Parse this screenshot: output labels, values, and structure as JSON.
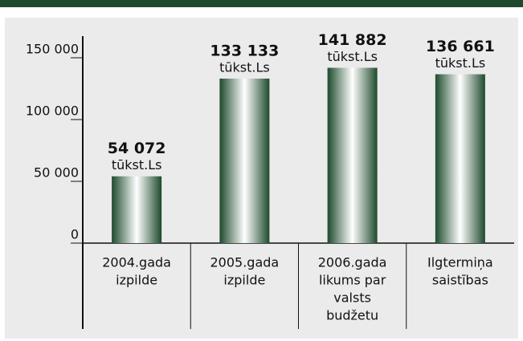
{
  "chart_data": {
    "type": "bar",
    "categories": [
      [
        "2004.gada",
        "izpilde"
      ],
      [
        "2005.gada",
        "izpilde"
      ],
      [
        "2006.gada",
        "likums par",
        "valsts",
        "budžetu"
      ],
      [
        "Ilgtermiņa",
        "saistības"
      ]
    ],
    "values": [
      54072,
      133133,
      141882,
      136661
    ],
    "value_labels": [
      "54 072",
      "133 133",
      "141 882",
      "136 661"
    ],
    "value_unit": "tūkst.Ls",
    "color": "#1d4a2c",
    "ylim": [
      0,
      150000
    ],
    "yticks": [
      0,
      {
        "value": 50000,
        "label": "50 000"
      },
      {
        "value": 100000,
        "label": "100 000"
      },
      {
        "value": 150000,
        "label": "150 000"
      }
    ]
  }
}
